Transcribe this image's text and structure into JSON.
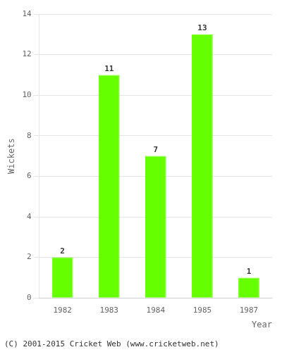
{
  "chart_data": {
    "type": "bar",
    "categories": [
      "1982",
      "1983",
      "1984",
      "1985",
      "1987"
    ],
    "values": [
      2,
      11,
      7,
      13,
      1
    ],
    "color": "#66ff00",
    "xlabel": "Year",
    "ylabel": "Wickets",
    "ylim": [
      0,
      14
    ],
    "yticks": [
      0,
      2,
      4,
      6,
      8,
      10,
      12,
      14
    ],
    "grid": true,
    "data_labels": true,
    "annotations": [
      "(C) 2001-2015 Cricket Web (www.cricketweb.net)"
    ]
  }
}
